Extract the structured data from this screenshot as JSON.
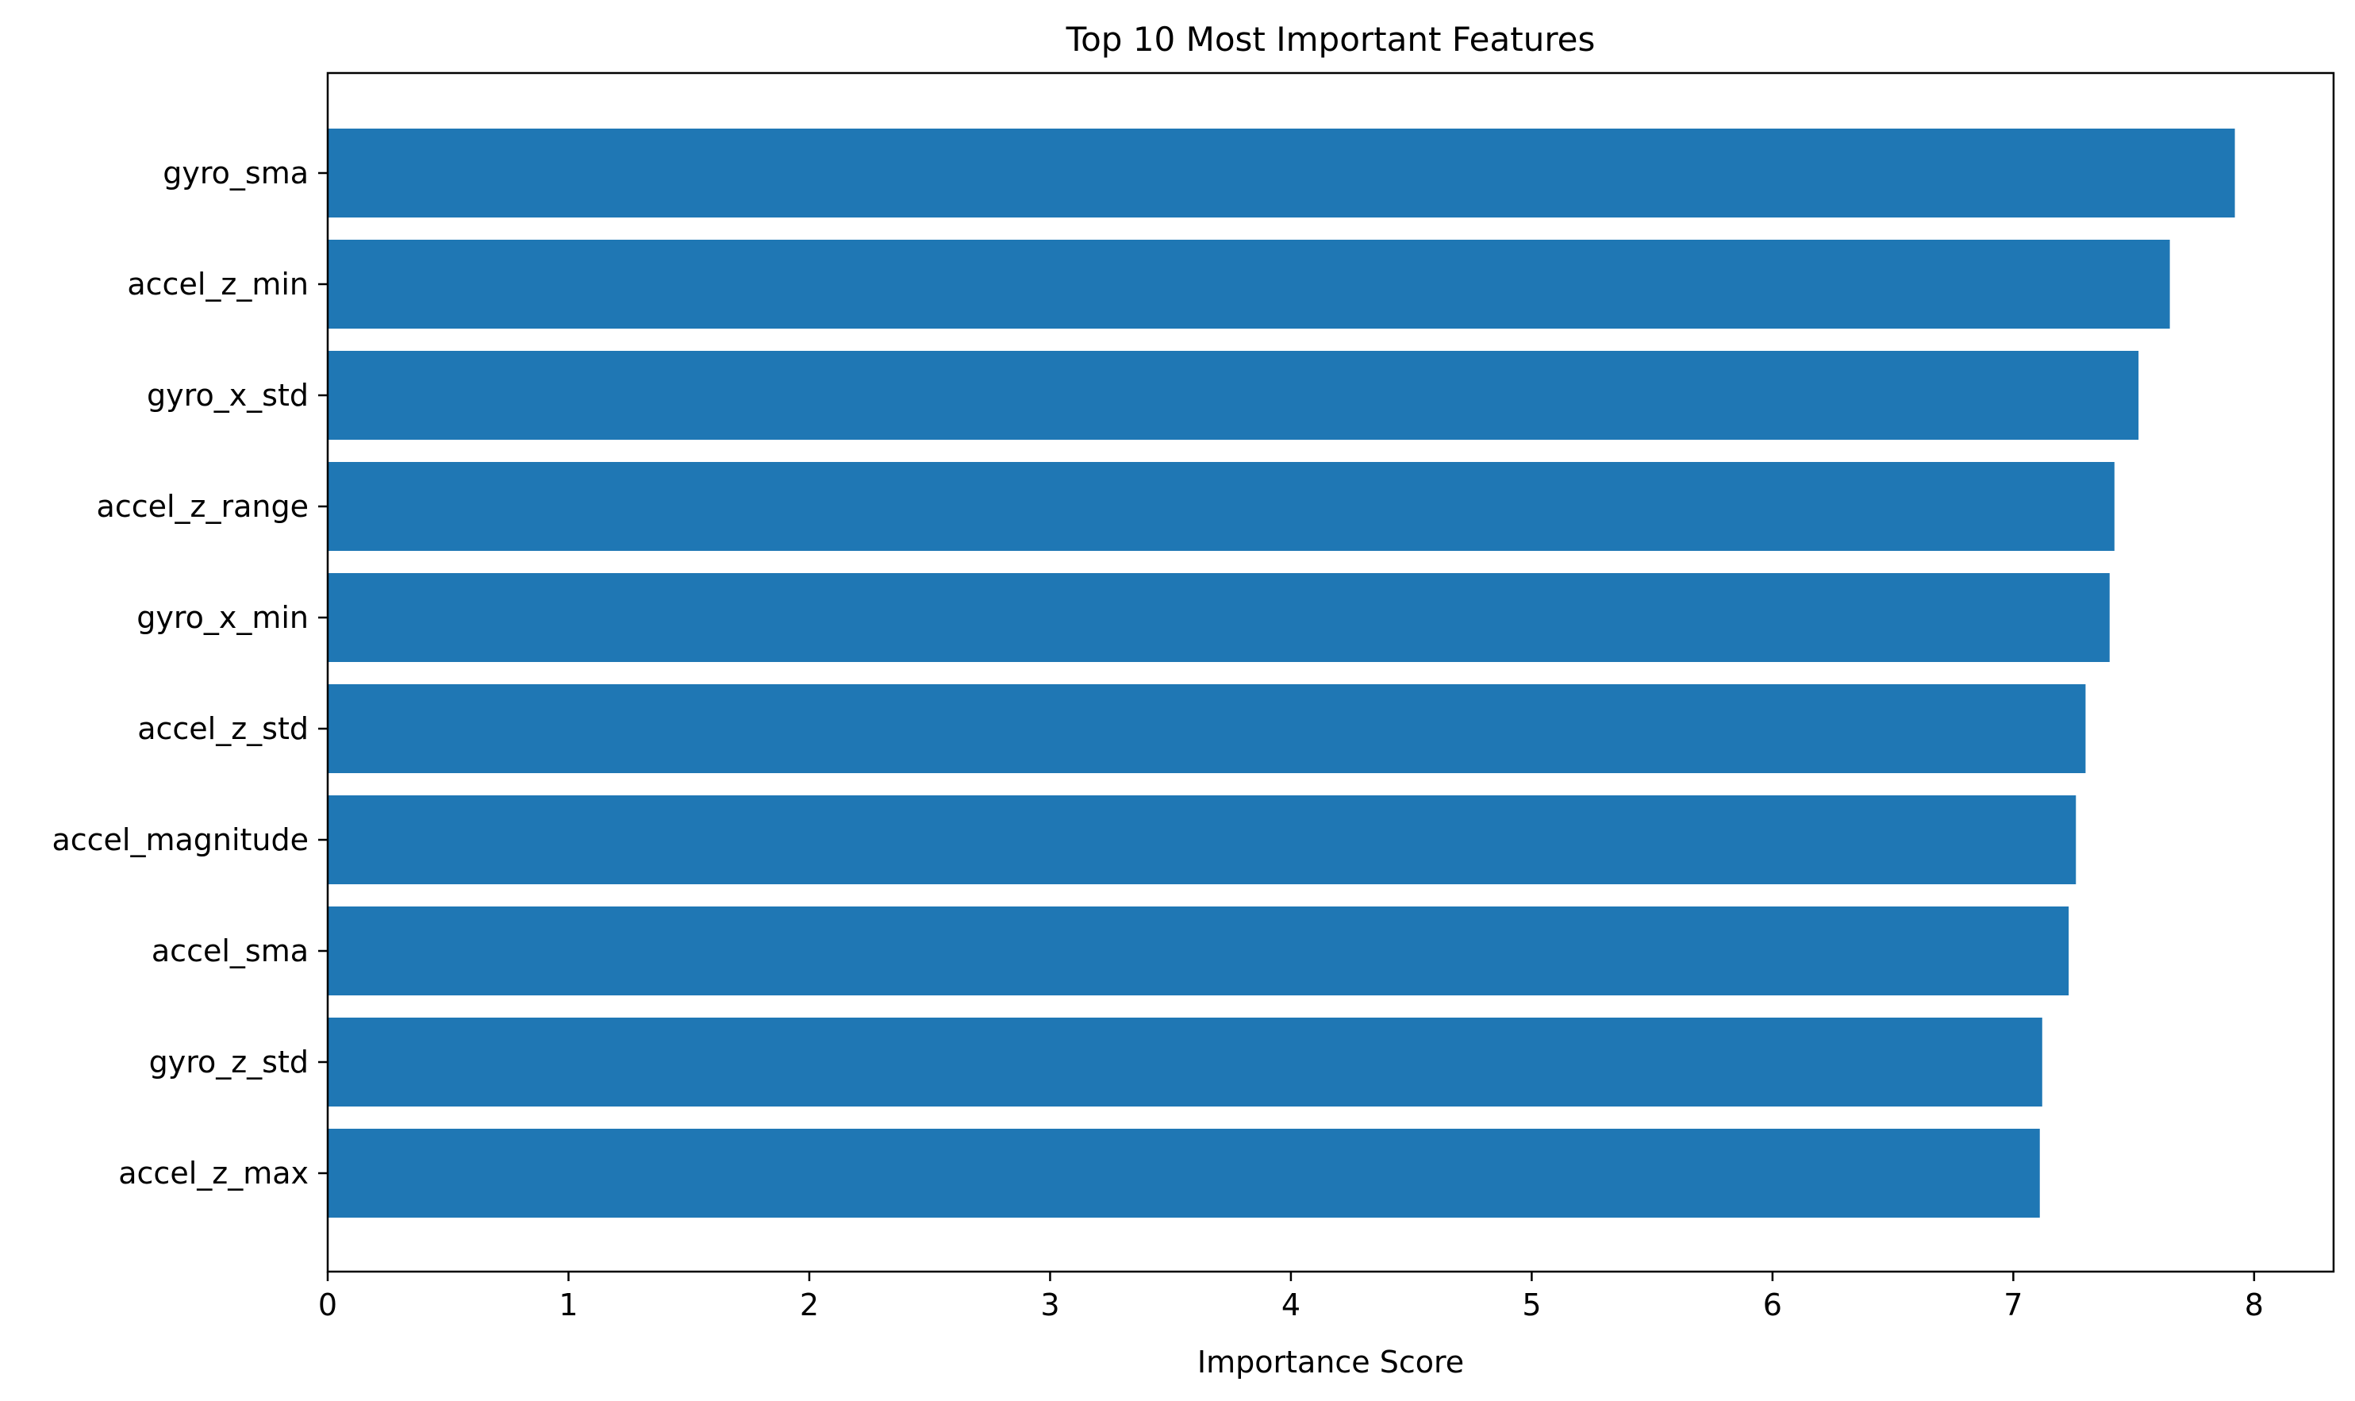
{
  "chart_data": {
    "type": "bar",
    "orientation": "horizontal",
    "title": "Top 10 Most Important Features",
    "xlabel": "Importance Score",
    "ylabel": "",
    "categories": [
      "gyro_sma",
      "accel_z_min",
      "gyro_x_std",
      "accel_z_range",
      "gyro_x_min",
      "accel_z_std",
      "accel_magnitude",
      "accel_sma",
      "gyro_z_std",
      "accel_z_max"
    ],
    "values": [
      7.92,
      7.65,
      7.52,
      7.42,
      7.4,
      7.3,
      7.26,
      7.23,
      7.12,
      7.11
    ],
    "xlim": [
      0,
      8.33
    ],
    "xticks": [
      0,
      1,
      2,
      3,
      4,
      5,
      6,
      7,
      8
    ],
    "bar_color": "#1f77b4",
    "grid": false,
    "legend": false
  }
}
